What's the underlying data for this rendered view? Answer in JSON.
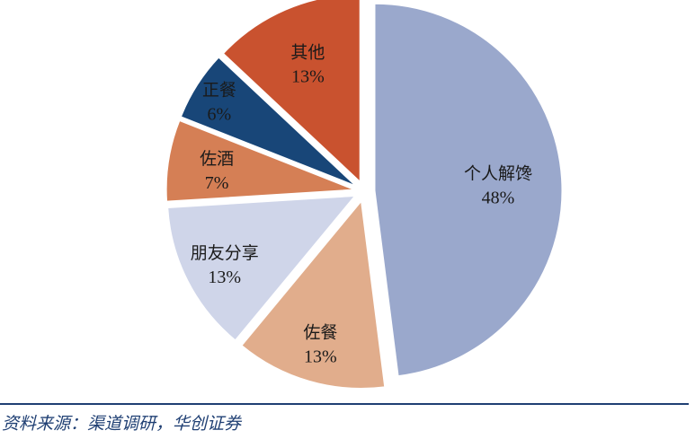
{
  "chart_data": {
    "type": "pie",
    "slices": [
      {
        "label": "个人解馋",
        "value": 48,
        "display": "48%",
        "color": "#9aa8cc"
      },
      {
        "label": "佐餐",
        "value": 13,
        "display": "13%",
        "color": "#e1ad8c"
      },
      {
        "label": "朋友分享",
        "value": 13,
        "display": "13%",
        "color": "#cfd5e9"
      },
      {
        "label": "佐酒",
        "value": 7,
        "display": "7%",
        "color": "#d57f55"
      },
      {
        "label": "正餐",
        "value": 6,
        "display": "6%",
        "color": "#184678"
      },
      {
        "label": "其他",
        "value": 13,
        "display": "13%",
        "color": "#c9522f"
      }
    ],
    "legend": "none"
  },
  "source": "资料来源：渠道调研，华创证券"
}
